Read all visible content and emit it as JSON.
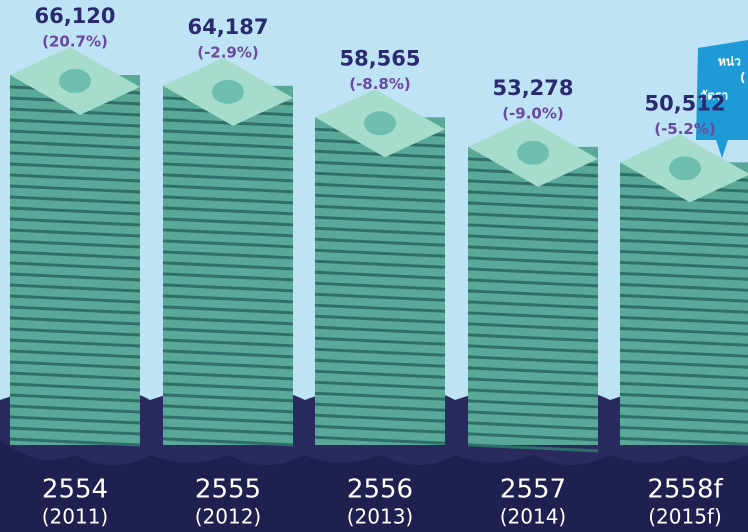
{
  "chart_data": {
    "type": "bar",
    "categories": [
      "2554",
      "2555",
      "2556",
      "2557",
      "2558f"
    ],
    "category_years": [
      "(2011)",
      "(2012)",
      "(2013)",
      "(2014)",
      "(2015f)"
    ],
    "values": [
      66120,
      64187,
      58565,
      53278,
      50512
    ],
    "value_labels": [
      "66,120",
      "64,187",
      "58,565",
      "53,278",
      "50,512"
    ],
    "growth": {
      "values": [
        20.7,
        -2.9,
        -8.8,
        -9.0,
        -5.2
      ],
      "value_labels": [
        "(20.7%)",
        "(-2.9%)",
        "(-8.8%)",
        "(-9.0%)",
        "(-5.2%)"
      ]
    },
    "color": "#5aa898",
    "note_lines": [
      "หน่ว",
      "(",
      "อัตรา"
    ]
  }
}
